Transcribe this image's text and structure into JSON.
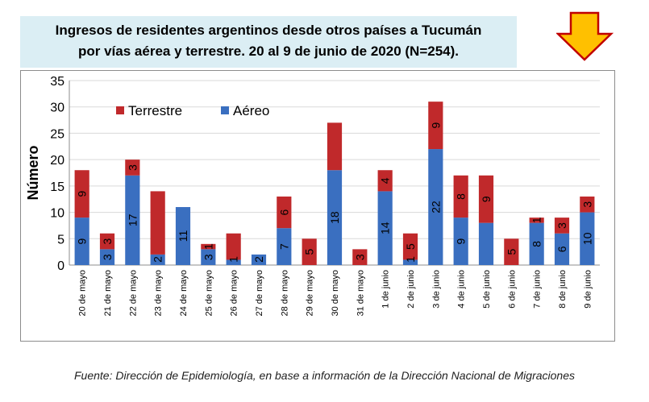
{
  "title_lines": [
    "Ingresos de residentes argentinos desde otros países a Tucumán",
    "por vías aérea y terrestre. 20 al 9 de junio de 2020 (N=254)."
  ],
  "source": "Fuente: Dirección de Epidemiología, en base a información de la Dirección Nacional de Migraciones",
  "arrow_icon": "down-arrow-icon",
  "colors": {
    "aereo": "#3a6fc0",
    "terrestre": "#c0292b",
    "title_bg": "#dbeef4",
    "arrow_fill": "#ffc000",
    "arrow_stroke": "#c00000"
  },
  "chart_data": {
    "type": "bar",
    "stacked": true,
    "title": "Ingresos de residentes argentinos desde otros países a Tucumán por vías aérea y terrestre. 20 al 9 de junio de 2020 (N=254).",
    "xlabel": "",
    "ylabel": "Número",
    "ylim": [
      0,
      35
    ],
    "yticks": [
      0,
      5,
      10,
      15,
      20,
      25,
      30,
      35
    ],
    "grid": true,
    "legend_position": "top-left",
    "categories": [
      "20 de mayo",
      "21 de mayo",
      "22 de mayo",
      "23 de mayo",
      "24 de mayo",
      "25 de mayo",
      "26 de mayo",
      "27 de mayo",
      "28 de mayo",
      "29 de mayo",
      "30 de mayo",
      "31 de mayo",
      "1 de junio",
      "2 de junio",
      "3 de junio",
      "4 de junio",
      "5 de junio",
      "6 de junio",
      "7 de junio",
      "8 de junio",
      "9 de junio"
    ],
    "legend_order": [
      "Terrestre",
      "Aéreo"
    ],
    "series": [
      {
        "name": "Aéreo",
        "color": "#3a6fc0",
        "values": [
          9,
          3,
          17,
          2,
          11,
          3,
          1,
          2,
          7,
          0,
          18,
          0,
          14,
          1,
          22,
          9,
          8,
          0,
          8,
          6,
          10
        ],
        "labels": [
          "9",
          "3",
          "17",
          "2",
          "11",
          "3",
          "1",
          "2",
          "7",
          "",
          "18",
          "",
          "14",
          "1",
          "22",
          "9",
          "",
          "",
          "8",
          "6",
          "10"
        ]
      },
      {
        "name": "Terrestre",
        "color": "#c0292b",
        "values": [
          9,
          3,
          3,
          12,
          0,
          1,
          5,
          0,
          6,
          5,
          9,
          3,
          4,
          5,
          9,
          8,
          9,
          5,
          1,
          3,
          3
        ],
        "labels": [
          "9",
          "3",
          "3",
          "",
          "",
          "1",
          "",
          "",
          "6",
          "5",
          "",
          "3",
          "4",
          "5",
          "9",
          "8",
          "9",
          "5",
          "1",
          "3",
          "3"
        ]
      }
    ]
  }
}
